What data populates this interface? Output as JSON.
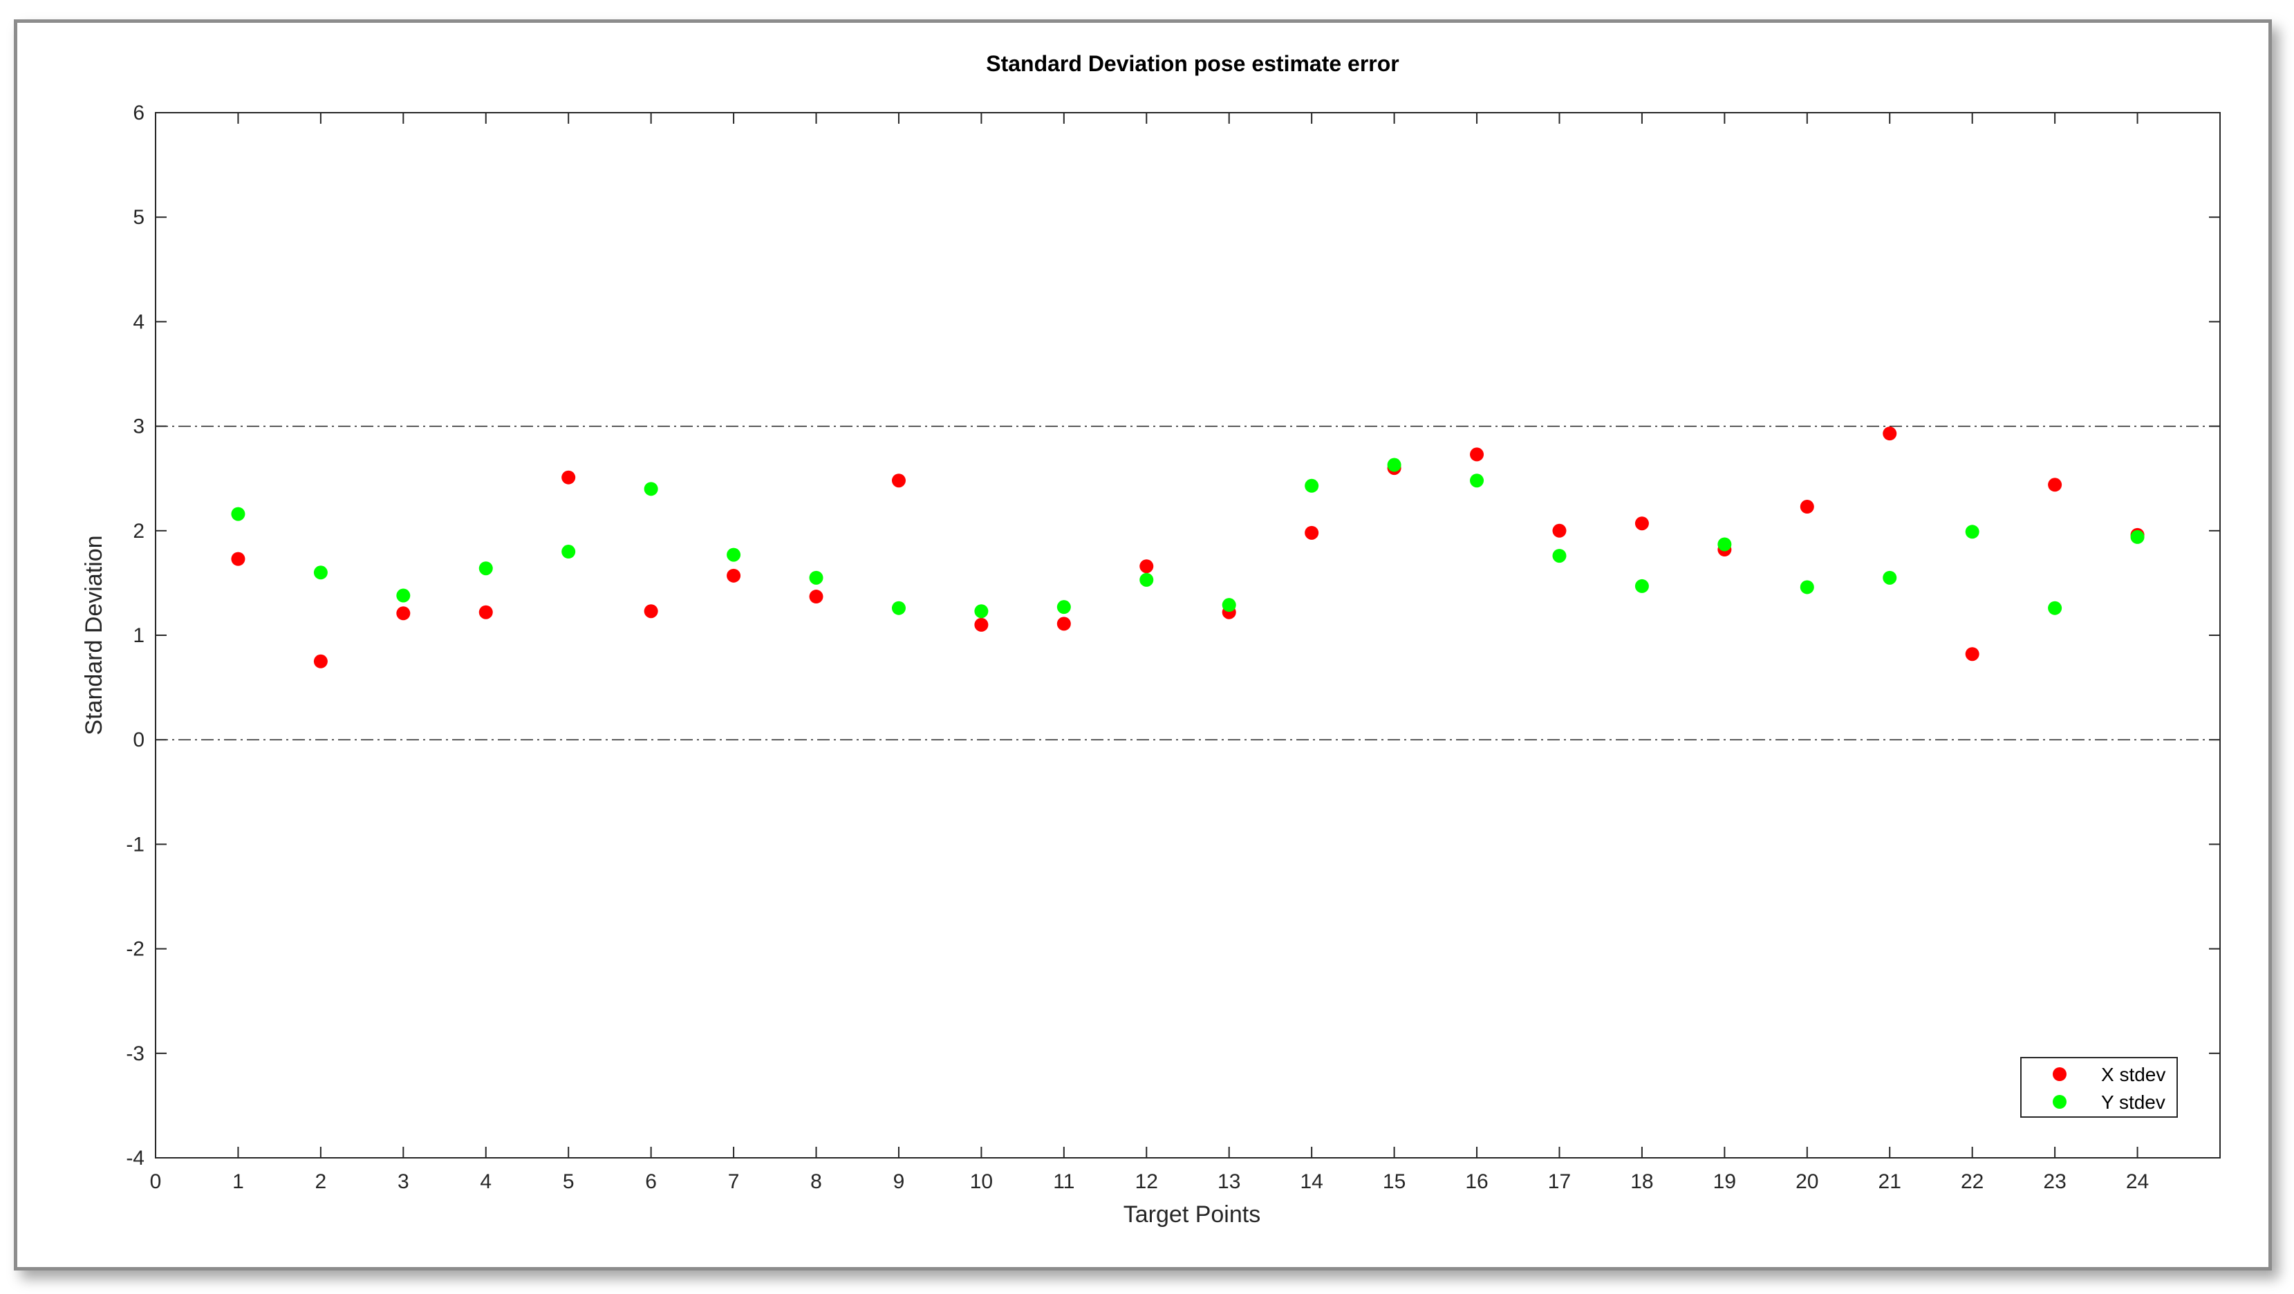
{
  "chart_data": {
    "type": "scatter",
    "title": "Standard Deviation pose estimate error",
    "xlabel": "Target Points",
    "ylabel": "Standard Deviation",
    "xlim": [
      0,
      25
    ],
    "ylim": [
      -4,
      6
    ],
    "xticks": [
      0,
      1,
      2,
      3,
      4,
      5,
      6,
      7,
      8,
      9,
      10,
      11,
      12,
      13,
      14,
      15,
      16,
      17,
      18,
      19,
      20,
      21,
      22,
      23,
      24
    ],
    "yticks": [
      -4,
      -3,
      -2,
      -1,
      0,
      1,
      2,
      3,
      4,
      5,
      6
    ],
    "reference_lines": [
      0,
      3
    ],
    "grid": false,
    "legend_position": "bottom-right",
    "series": [
      {
        "name": "X stdev",
        "color": "#ff0000",
        "x": [
          1,
          2,
          3,
          4,
          5,
          6,
          7,
          8,
          9,
          10,
          11,
          12,
          13,
          14,
          15,
          16,
          17,
          18,
          19,
          20,
          21,
          22,
          23,
          24
        ],
        "y": [
          1.73,
          0.75,
          1.21,
          1.22,
          2.51,
          1.23,
          1.57,
          1.37,
          2.48,
          1.1,
          1.11,
          1.66,
          1.22,
          1.98,
          2.6,
          2.73,
          2.0,
          2.07,
          1.82,
          2.23,
          2.93,
          0.82,
          2.44,
          1.96
        ]
      },
      {
        "name": "Y stdev",
        "color": "#00ff00",
        "x": [
          1,
          2,
          3,
          4,
          5,
          6,
          7,
          8,
          9,
          10,
          11,
          12,
          13,
          14,
          15,
          16,
          17,
          18,
          19,
          20,
          21,
          22,
          23,
          24
        ],
        "y": [
          2.16,
          1.6,
          1.38,
          1.64,
          1.8,
          2.4,
          1.77,
          1.55,
          1.26,
          1.23,
          1.27,
          1.53,
          1.29,
          2.43,
          2.63,
          2.48,
          1.76,
          1.47,
          1.87,
          1.46,
          1.55,
          1.99,
          1.26,
          1.94
        ]
      }
    ]
  }
}
